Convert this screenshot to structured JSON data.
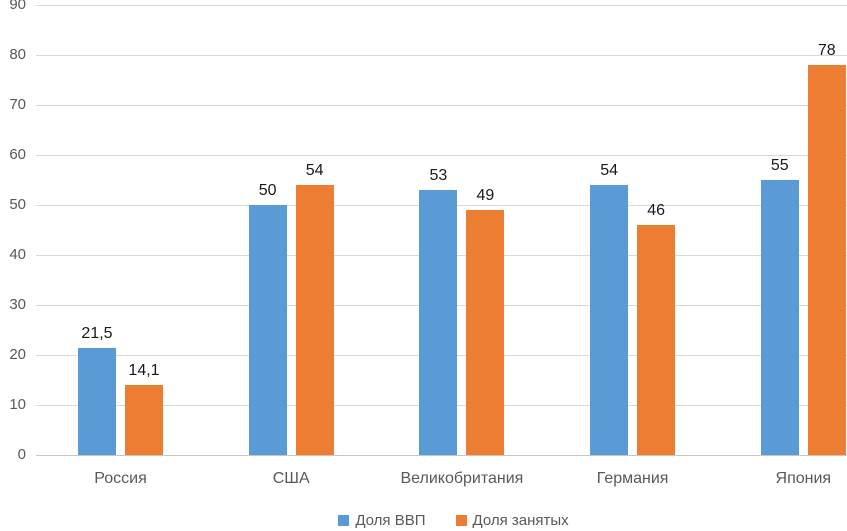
{
  "chart_data": {
    "type": "bar",
    "categories": [
      "Россия",
      "США",
      "Великобритания",
      "Германия",
      "Япония"
    ],
    "series": [
      {
        "name": "Доля ВВП",
        "color": "#5B9BD5",
        "values": [
          21.5,
          50,
          53,
          54,
          55
        ],
        "labels": [
          "21,5",
          "50",
          "53",
          "54",
          "55"
        ]
      },
      {
        "name": "Доля занятых",
        "color": "#ED7D31",
        "values": [
          14.1,
          54,
          49,
          46,
          78
        ],
        "labels": [
          "14,1",
          "54",
          "49",
          "46",
          "78"
        ]
      }
    ],
    "title": "",
    "xlabel": "",
    "ylabel": "",
    "ylim": [
      0,
      90
    ],
    "ytick_step": 10,
    "ytick_labels": [
      "0",
      "10",
      "20",
      "30",
      "40",
      "50",
      "60",
      "70",
      "80",
      "90"
    ],
    "grid": true,
    "legend_position": "bottom",
    "colors": {
      "gridline": "#d9d9d9",
      "axis_line": "#c6c6c6",
      "tick_text": "#595959",
      "data_label_text": "#1a1a1a"
    }
  }
}
